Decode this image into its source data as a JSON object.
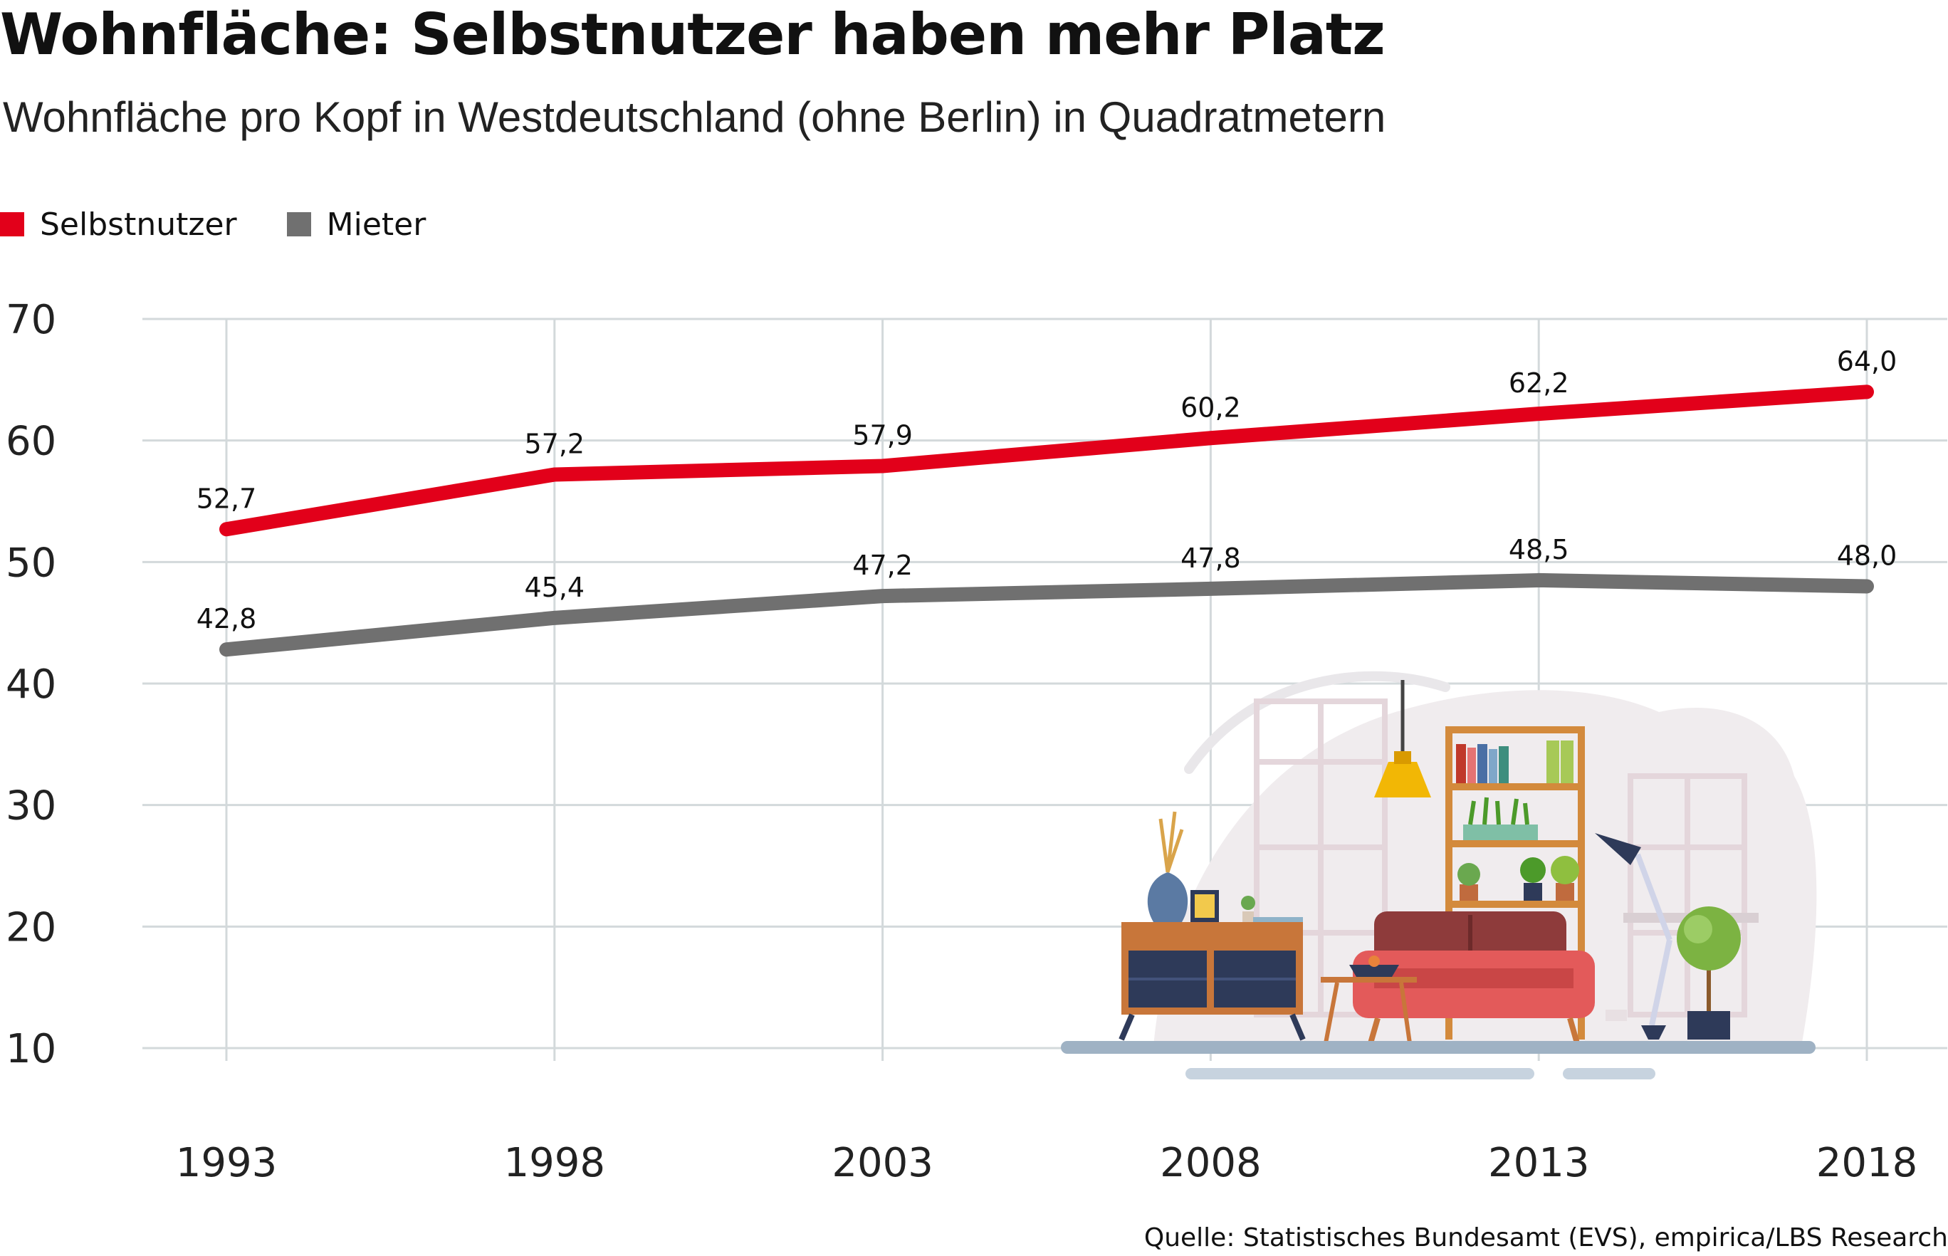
{
  "header": {
    "title": "Wohnfläche: Selbstnutzer haben mehr Platz",
    "subtitle": "Wohnfläche pro Kopf in Westdeutschland (ohne Berlin) in Quadratmetern"
  },
  "legend": [
    {
      "label": "Selbstnutzer",
      "color": "#e2001a"
    },
    {
      "label": "Mieter",
      "color": "#707070"
    }
  ],
  "source": "Quelle: Statistisches Bundesamt (EVS), empirica/LBS Research",
  "chart_data": {
    "type": "line",
    "x": [
      "1993",
      "1998",
      "2003",
      "2008",
      "2013",
      "2018"
    ],
    "ylim": [
      10,
      70
    ],
    "yticks": [
      "10",
      "20",
      "30",
      "40",
      "50",
      "60",
      "70"
    ],
    "grid": true,
    "legend_position": "top-left",
    "series": [
      {
        "name": "Selbstnutzer",
        "color": "#e2001a",
        "values": [
          52.7,
          57.2,
          57.9,
          60.2,
          62.2,
          64.0
        ],
        "labels": [
          "52,7",
          "57,2",
          "57,9",
          "60,2",
          "62,2",
          "64,0"
        ]
      },
      {
        "name": "Mieter",
        "color": "#707070",
        "values": [
          42.8,
          45.4,
          47.2,
          47.8,
          48.5,
          48.0
        ],
        "labels": [
          "42,8",
          "45,4",
          "47,2",
          "47,8",
          "48,5",
          "48,0"
        ]
      }
    ]
  },
  "illustration": {
    "subject": "living-room-illustration"
  }
}
